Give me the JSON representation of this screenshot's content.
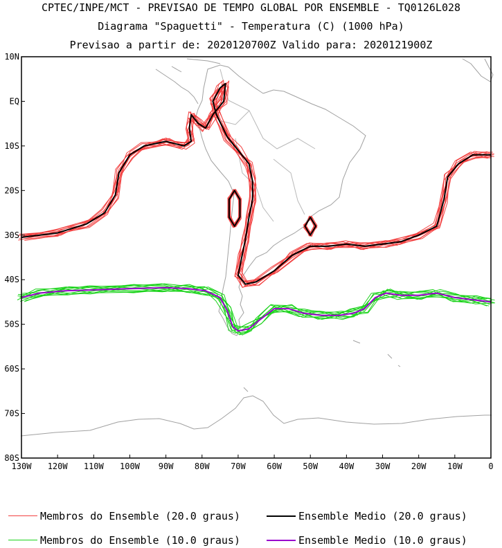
{
  "header": {
    "line1": "CPTEC/INPE/MCT - PREVISAO DE TEMPO GLOBAL POR ENSEMBLE - TQ0126L028",
    "line2": "Diagrama \"Spaguetti\" - Temperatura (C) (1000 hPa)",
    "line3": "Previsao a partir de: 2020120700Z  Valido para: 2020121900Z"
  },
  "map": {
    "lon_range": [
      -130,
      0
    ],
    "lat_range": [
      -80,
      10
    ],
    "y_ticks": [
      "10N",
      "EQ",
      "10S",
      "20S",
      "30S",
      "40S",
      "50S",
      "60S",
      "70S",
      "80S"
    ],
    "x_ticks": [
      "130W",
      "120W",
      "110W",
      "100W",
      "90W",
      "80W",
      "70W",
      "60W",
      "50W",
      "40W",
      "30W",
      "20W",
      "10W",
      "0"
    ],
    "colors": {
      "coastline": "#a0a0a0",
      "member_20": "#f24040",
      "mean_20": "#000000",
      "member_10": "#19d219",
      "mean_10": "#9900cc"
    }
  },
  "legend": {
    "members_20": "Membros do Ensemble (20.0 graus)",
    "mean_20": "Ensemble Medio (20.0 graus)",
    "members_10": "Membros do Ensemble (10.0 graus)",
    "mean_10": "Ensemble Medio (10.0 graus)"
  }
}
